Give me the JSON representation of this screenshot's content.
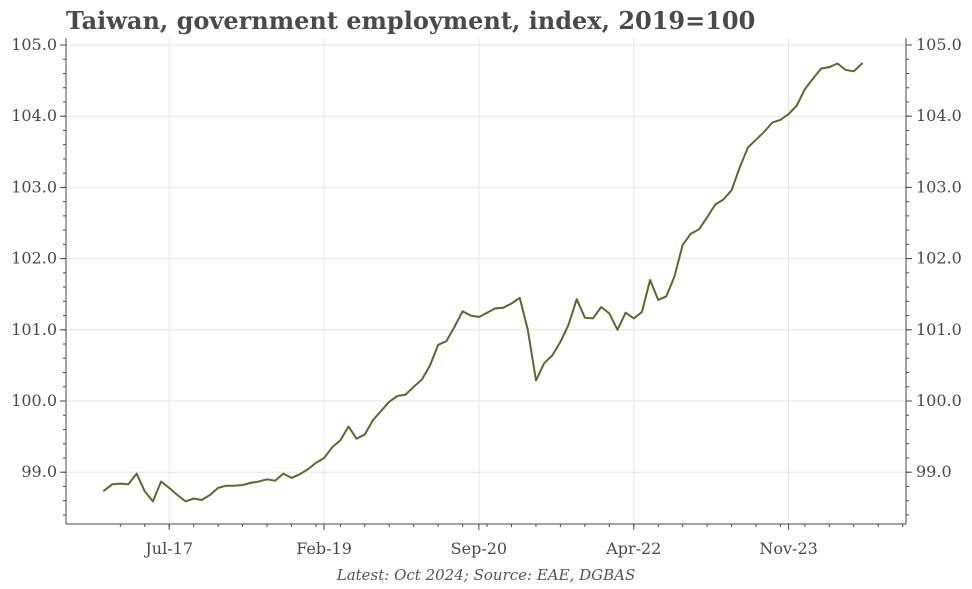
{
  "title": "Taiwan, government employment, index, 2019=100",
  "footer": "Latest: Oct 2024; Source: EAE, DGBAS",
  "colors": {
    "line": "#5a6b2f",
    "grid": "#e6e6e6",
    "axis": "#4a4a4a",
    "text": "#4a4a4a"
  },
  "chart_data": {
    "type": "line",
    "title": "Taiwan, government employment, index, 2019=100",
    "xlabel": "",
    "ylabel": "",
    "x_start": "2016-11",
    "x_end": "2024-10",
    "x_tick_labels": [
      {
        "label": "Jul-17",
        "date": "2017-07"
      },
      {
        "label": "Feb-19",
        "date": "2019-02"
      },
      {
        "label": "Sep-20",
        "date": "2020-09"
      },
      {
        "label": "Apr-22",
        "date": "2022-04"
      },
      {
        "label": "Nov-23",
        "date": "2023-11"
      }
    ],
    "y_ticks": [
      99,
      100,
      101,
      102,
      103,
      104,
      105
    ],
    "y_tick_labels": [
      "99.0",
      "100.0",
      "101.0",
      "102.0",
      "103.0",
      "104.0",
      "105.0"
    ],
    "ylim": [
      98.3,
      105.0
    ],
    "grid": true,
    "secondary_y_axis": true,
    "series": [
      {
        "values": [
          98.74,
          98.83,
          98.84,
          98.83,
          98.98,
          98.73,
          98.59,
          98.87,
          98.78,
          98.68,
          98.59,
          98.63,
          98.61,
          98.68,
          98.78,
          98.81,
          98.81,
          98.82,
          98.85,
          98.87,
          98.9,
          98.88,
          98.98,
          98.92,
          98.97,
          99.04,
          99.13,
          99.2,
          99.35,
          99.45,
          99.64,
          99.47,
          99.53,
          99.73,
          99.86,
          99.99,
          100.07,
          100.09,
          100.2,
          100.3,
          100.5,
          100.79,
          100.84,
          101.04,
          101.26,
          101.2,
          101.18,
          101.24,
          101.3,
          101.31,
          101.37,
          101.45,
          101.0,
          100.29,
          100.53,
          100.64,
          100.83,
          101.07,
          101.43,
          101.17,
          101.16,
          101.32,
          101.23,
          101.0,
          101.24,
          101.16,
          101.25,
          101.7,
          101.42,
          101.47,
          101.75,
          102.19,
          102.35,
          102.41,
          102.58,
          102.76,
          102.83,
          102.96,
          103.28,
          103.56,
          103.67,
          103.78,
          103.91,
          103.95,
          104.03,
          104.15,
          104.38,
          104.53,
          104.67,
          104.69,
          104.74,
          104.65,
          104.63,
          104.74
        ]
      }
    ]
  }
}
